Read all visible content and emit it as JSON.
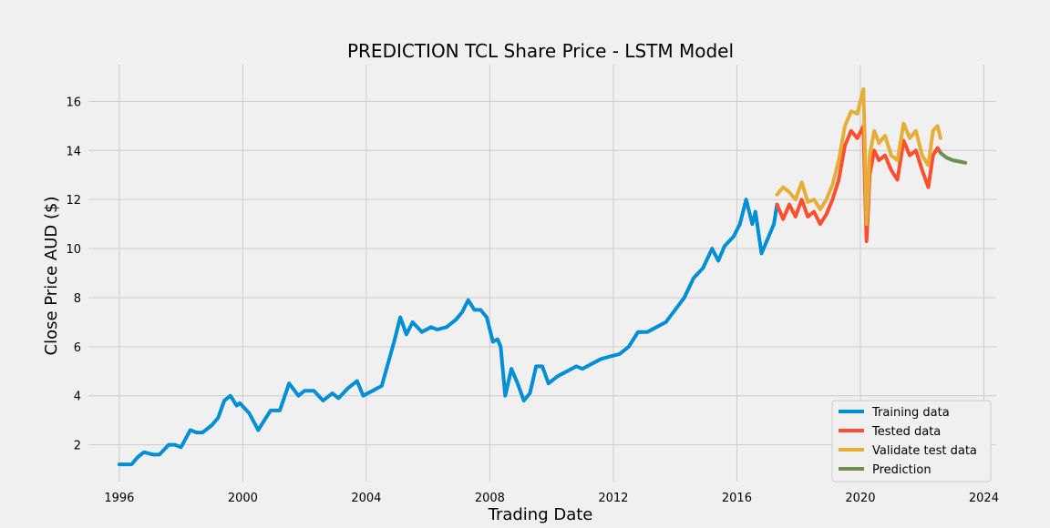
{
  "chart_data": {
    "type": "line",
    "title": "PREDICTION TCL Share Price - LSTM Model",
    "xlabel": "Trading Date",
    "ylabel": "Close Price AUD ($)",
    "xlim": [
      1995.0,
      2024.4
    ],
    "ylim": [
      0.5,
      17.5
    ],
    "x_ticks": [
      1996,
      2000,
      2004,
      2008,
      2012,
      2016,
      2020,
      2024
    ],
    "y_ticks": [
      2,
      4,
      6,
      8,
      10,
      12,
      14,
      16
    ],
    "grid": true,
    "legend_position": "bottom-right",
    "series": [
      {
        "name": "Training data",
        "color": "#008fd5",
        "x": [
          1996.0,
          1996.4,
          1996.6,
          1996.8,
          1997.1,
          1997.3,
          1997.6,
          1997.8,
          1998.0,
          1998.3,
          1998.5,
          1998.7,
          1999.0,
          1999.2,
          1999.4,
          1999.6,
          1999.8,
          1999.9,
          2000.2,
          2000.5,
          2000.7,
          2000.9,
          2001.2,
          2001.5,
          2001.8,
          2002.0,
          2002.3,
          2002.6,
          2002.9,
          2003.1,
          2003.4,
          2003.7,
          2003.9,
          2004.2,
          2004.5,
          2004.7,
          2004.9,
          2005.1,
          2005.3,
          2005.5,
          2005.8,
          2006.1,
          2006.3,
          2006.6,
          2006.9,
          2007.1,
          2007.3,
          2007.5,
          2007.7,
          2007.9,
          2008.1,
          2008.25,
          2008.35,
          2008.5,
          2008.7,
          2008.9,
          2009.1,
          2009.3,
          2009.5,
          2009.7,
          2009.9,
          2010.2,
          2010.5,
          2010.8,
          2011.0,
          2011.3,
          2011.6,
          2011.9,
          2012.2,
          2012.5,
          2012.8,
          2013.1,
          2013.4,
          2013.7,
          2014.0,
          2014.3,
          2014.6,
          2014.9,
          2015.2,
          2015.4,
          2015.6,
          2015.9,
          2016.1,
          2016.3,
          2016.5,
          2016.6,
          2016.8,
          2017.0,
          2017.2,
          2017.3
        ],
        "y": [
          1.2,
          1.2,
          1.5,
          1.7,
          1.6,
          1.6,
          2.0,
          2.0,
          1.9,
          2.6,
          2.5,
          2.5,
          2.8,
          3.1,
          3.8,
          4.0,
          3.6,
          3.7,
          3.3,
          2.6,
          3.0,
          3.4,
          3.4,
          4.5,
          4.0,
          4.2,
          4.2,
          3.8,
          4.1,
          3.9,
          4.3,
          4.6,
          4.0,
          4.2,
          4.4,
          5.3,
          6.2,
          7.2,
          6.5,
          7.0,
          6.6,
          6.8,
          6.7,
          6.8,
          7.1,
          7.4,
          7.9,
          7.5,
          7.5,
          7.2,
          6.2,
          6.3,
          6.0,
          4.0,
          5.1,
          4.5,
          3.8,
          4.1,
          5.2,
          5.2,
          4.5,
          4.8,
          5.0,
          5.2,
          5.1,
          5.3,
          5.5,
          5.6,
          5.7,
          6.0,
          6.6,
          6.6,
          6.8,
          7.0,
          7.5,
          8.0,
          8.8,
          9.2,
          10.0,
          9.5,
          10.1,
          10.5,
          11.0,
          12.0,
          11.0,
          11.5,
          9.8,
          10.4,
          11.0,
          11.8
        ]
      },
      {
        "name": "Tested data",
        "color": "#fc4f30",
        "x": [
          2017.3,
          2017.5,
          2017.7,
          2017.9,
          2018.1,
          2018.3,
          2018.5,
          2018.7,
          2018.9,
          2019.1,
          2019.3,
          2019.5,
          2019.7,
          2019.9,
          2020.1,
          2020.15,
          2020.2,
          2020.25,
          2020.3,
          2020.45,
          2020.6,
          2020.8,
          2021.0,
          2021.2,
          2021.4,
          2021.6,
          2021.8,
          2022.0,
          2022.2,
          2022.35,
          2022.5,
          2022.6
        ],
        "y": [
          11.8,
          11.2,
          11.8,
          11.3,
          12.0,
          11.3,
          11.5,
          11.0,
          11.4,
          12.0,
          12.8,
          14.2,
          14.8,
          14.5,
          15.0,
          12.5,
          10.3,
          11.5,
          13.0,
          14.0,
          13.6,
          13.8,
          13.2,
          12.8,
          14.4,
          13.8,
          14.0,
          13.2,
          12.5,
          13.8,
          14.1,
          13.9
        ]
      },
      {
        "name": "Validate test data",
        "color": "#e5ae38",
        "x": [
          2017.3,
          2017.5,
          2017.7,
          2017.9,
          2018.1,
          2018.3,
          2018.5,
          2018.7,
          2018.9,
          2019.1,
          2019.3,
          2019.5,
          2019.7,
          2019.9,
          2020.1,
          2020.15,
          2020.2,
          2020.25,
          2020.3,
          2020.45,
          2020.6,
          2020.8,
          2021.0,
          2021.2,
          2021.4,
          2021.6,
          2021.8,
          2022.0,
          2022.2,
          2022.35,
          2022.5,
          2022.6
        ],
        "y": [
          12.2,
          12.5,
          12.3,
          12.0,
          12.7,
          11.9,
          12.0,
          11.6,
          12.0,
          12.6,
          13.6,
          15.0,
          15.6,
          15.5,
          16.5,
          14.0,
          11.0,
          12.2,
          13.8,
          14.8,
          14.3,
          14.6,
          13.8,
          13.6,
          15.1,
          14.5,
          14.8,
          13.8,
          13.4,
          14.8,
          15.0,
          14.5
        ]
      },
      {
        "name": "Prediction",
        "color": "#6d904f",
        "x": [
          2022.6,
          2022.8,
          2023.0,
          2023.2,
          2023.4
        ],
        "y": [
          13.9,
          13.7,
          13.6,
          13.55,
          13.5
        ]
      }
    ]
  }
}
